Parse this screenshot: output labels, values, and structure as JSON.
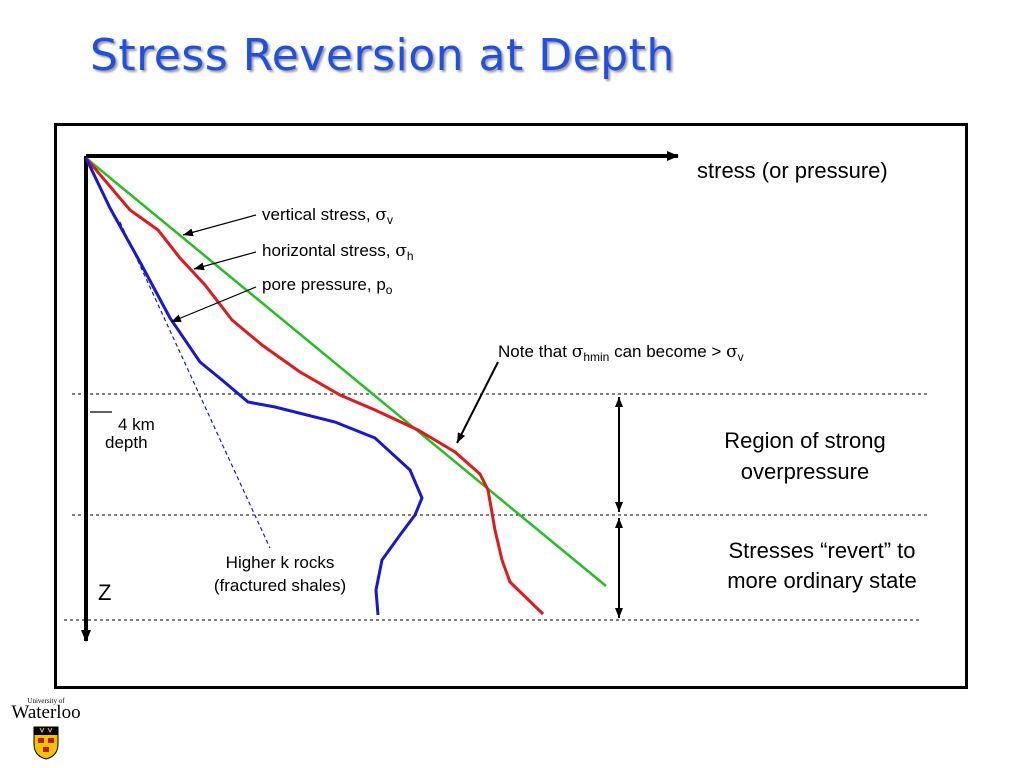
{
  "slide": {
    "title": "Stress Reversion at Depth"
  },
  "diagram": {
    "x_axis_label": "stress (or pressure)",
    "z_axis_label": "Z",
    "depth_marker": {
      "line1": "4 km",
      "line2": "depth"
    },
    "curves": {
      "vertical_stress": {
        "label_text": "vertical stress, ",
        "symbol": "σ",
        "subscript": "v",
        "color": "#22c020"
      },
      "horizontal_stress": {
        "label_text": "horizontal stress, ",
        "symbol": "σ",
        "subscript": "h",
        "color": "#e01a1a"
      },
      "pore_pressure": {
        "label_text": "pore pressure, p",
        "subscript": "o",
        "color": "#1717d8"
      },
      "hydrostatic_trend": {
        "color": "#1717d8",
        "style": "dashed"
      }
    },
    "note": {
      "prefix": "Note that ",
      "symbol": "σ",
      "sub1": "hmin",
      "middle": " can become > ",
      "symbol2": "σ",
      "sub2": "v"
    },
    "regions": {
      "overpressure": {
        "line1": "Region of strong",
        "line2": "overpressure"
      },
      "revert": {
        "line1": "Stresses “revert” to",
        "line2": "more ordinary state"
      }
    },
    "rocks": {
      "line1": "Higher k rocks",
      "line2": "(fractured shales)"
    }
  },
  "logo": {
    "small_text": "University of",
    "name": "Waterloo"
  }
}
